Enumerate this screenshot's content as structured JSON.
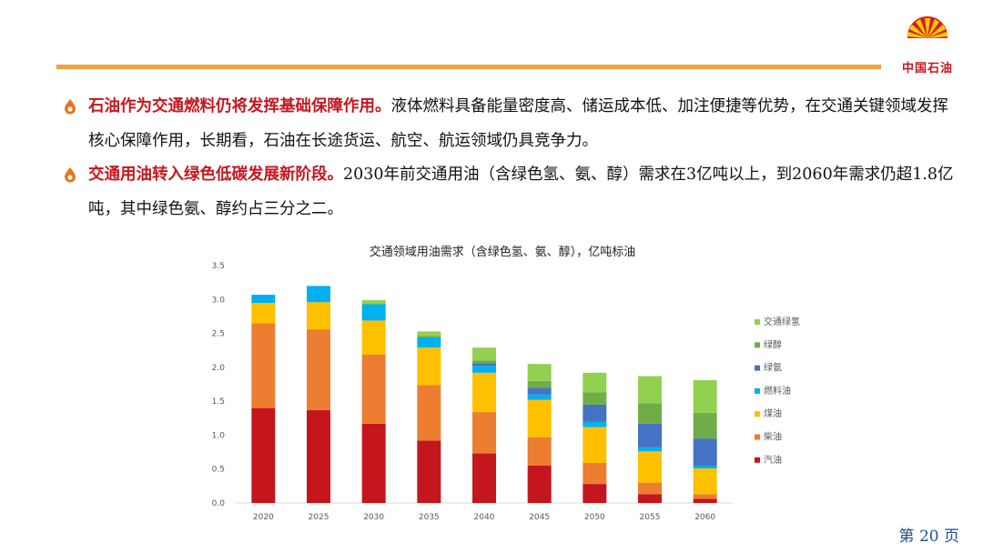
{
  "header": {
    "logo_text": "中国石油"
  },
  "bullets": [
    {
      "highlight": "石油作为交通燃料仍将发挥基础保障作用。",
      "body": "液体燃料具备能量密度高、储运成本低、加注便捷等优势，在交通关键领域发挥核心保障作用，长期看，石油在长途货运、航空、航运领域仍具竞争力。"
    },
    {
      "highlight": "交通用油转入绿色低碳发展新阶段。",
      "body": "2030年前交通用油（含绿色氢、氨、醇）需求在3亿吨以上，到2060年需求仍超1.8亿吨，其中绿色氨、醇约占三分之二。"
    }
  ],
  "page_number": {
    "prefix": "第",
    "number": "20",
    "suffix": "页"
  },
  "chart_data": {
    "type": "bar",
    "stacked": true,
    "title": "交通领域用油需求（含绿色氢、氨、醇），亿吨标油",
    "categories": [
      "2020",
      "2025",
      "2030",
      "2035",
      "2040",
      "2045",
      "2050",
      "2055",
      "2060"
    ],
    "ylim": [
      0,
      3.5
    ],
    "yticks": [
      "0.0",
      "0.5",
      "1.0",
      "1.5",
      "2.0",
      "2.5",
      "3.0",
      "3.5"
    ],
    "grid": false,
    "legend_position": "right",
    "series": [
      {
        "name": "汽油",
        "color": "#c4161c",
        "values": [
          1.4,
          1.37,
          1.17,
          0.92,
          0.73,
          0.55,
          0.28,
          0.13,
          0.06
        ]
      },
      {
        "name": "柴油",
        "color": "#ed7d31",
        "values": [
          1.25,
          1.19,
          1.02,
          0.82,
          0.61,
          0.42,
          0.31,
          0.17,
          0.07
        ]
      },
      {
        "name": "煤油",
        "color": "#ffc000",
        "values": [
          0.3,
          0.4,
          0.5,
          0.55,
          0.58,
          0.55,
          0.53,
          0.46,
          0.38
        ]
      },
      {
        "name": "燃料油",
        "color": "#00b0f0",
        "values": [
          0.12,
          0.24,
          0.24,
          0.15,
          0.1,
          0.08,
          0.08,
          0.06,
          0.04
        ]
      },
      {
        "name": "绿氨",
        "color": "#4472c4",
        "values": [
          0,
          0,
          0,
          0,
          0.04,
          0.1,
          0.25,
          0.35,
          0.4
        ]
      },
      {
        "name": "绿醇",
        "color": "#70ad47",
        "values": [
          0,
          0,
          0,
          0.02,
          0.04,
          0.1,
          0.18,
          0.3,
          0.38
        ]
      },
      {
        "name": "交通绿氢",
        "color": "#92d050",
        "values": [
          0,
          0,
          0.06,
          0.07,
          0.19,
          0.25,
          0.29,
          0.4,
          0.48
        ]
      }
    ]
  }
}
